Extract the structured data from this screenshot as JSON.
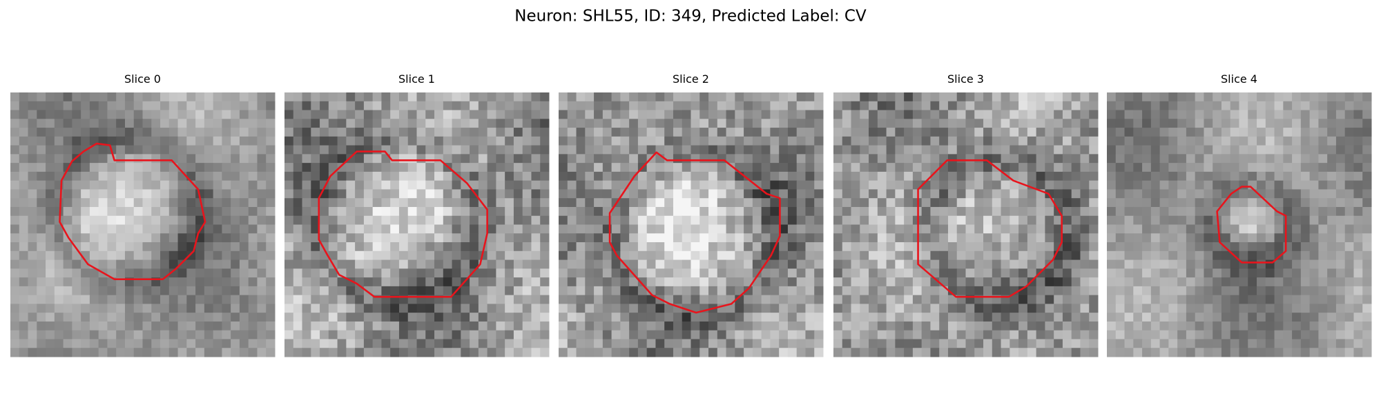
{
  "title": "Neuron: SHL55, ID: 349, Predicted Label: CV",
  "panels": [
    {
      "title": "Slice 0"
    },
    {
      "title": "Slice 1"
    },
    {
      "title": "Slice 2"
    },
    {
      "title": "Slice 3"
    },
    {
      "title": "Slice 4"
    }
  ]
}
